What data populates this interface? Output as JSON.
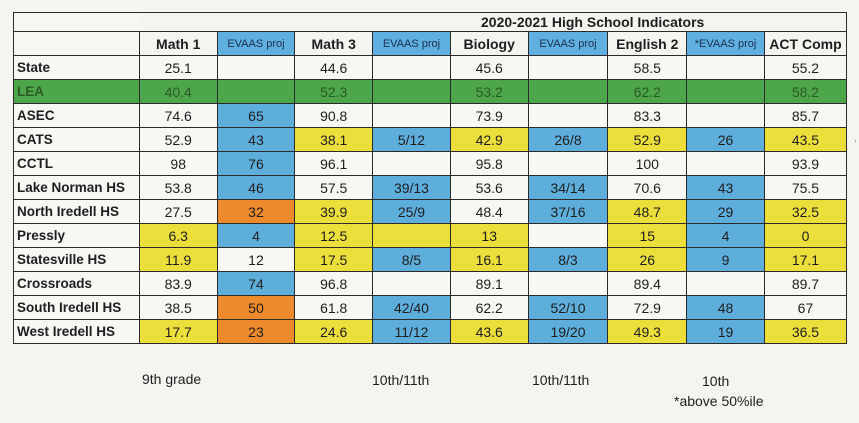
{
  "title": "2020-2021 High School Indicators",
  "headers": [
    "Math 1",
    "EVAAS proj",
    "Math 3",
    "EVAAS proj",
    "Biology",
    "EVAAS proj",
    "English 2",
    "*EVAAS proj",
    "ACT Comp"
  ],
  "rows": [
    {
      "label": "State",
      "cells": [
        [
          "25.1",
          "w"
        ],
        [
          "",
          "w"
        ],
        [
          "44.6",
          "w"
        ],
        [
          "",
          "w"
        ],
        [
          "45.6",
          "w"
        ],
        [
          "",
          "w"
        ],
        [
          "58.5",
          "w"
        ],
        [
          "",
          "w"
        ],
        [
          "55.2",
          "w"
        ]
      ]
    },
    {
      "label": "LEA",
      "cells": [
        [
          "40.4",
          "g"
        ],
        [
          "",
          "g"
        ],
        [
          "52.3",
          "g"
        ],
        [
          "",
          "g"
        ],
        [
          "53.2",
          "g"
        ],
        [
          "",
          "g"
        ],
        [
          "62.2",
          "g"
        ],
        [
          "",
          "g"
        ],
        [
          "58.2",
          "g"
        ]
      ]
    },
    {
      "label": "ASEC",
      "cells": [
        [
          "74.6",
          "w"
        ],
        [
          "65",
          "b"
        ],
        [
          "90.8",
          "w"
        ],
        [
          "",
          "w"
        ],
        [
          "73.9",
          "w"
        ],
        [
          "",
          "w"
        ],
        [
          "83.3",
          "w"
        ],
        [
          "",
          "w"
        ],
        [
          "85.7",
          "w"
        ]
      ]
    },
    {
      "label": "CATS",
      "cells": [
        [
          "52.9",
          "w"
        ],
        [
          "43",
          "b"
        ],
        [
          "38.1",
          "y"
        ],
        [
          "5/12",
          "b"
        ],
        [
          "42.9",
          "y"
        ],
        [
          "26/8",
          "b"
        ],
        [
          "52.9",
          "y"
        ],
        [
          "26",
          "b"
        ],
        [
          "43.5",
          "y"
        ]
      ]
    },
    {
      "label": "CCTL",
      "cells": [
        [
          "98",
          "w"
        ],
        [
          "76",
          "b"
        ],
        [
          "96.1",
          "w"
        ],
        [
          "",
          "w"
        ],
        [
          "95.8",
          "w"
        ],
        [
          "",
          "w"
        ],
        [
          "100",
          "w"
        ],
        [
          "",
          "w"
        ],
        [
          "93.9",
          "w"
        ]
      ]
    },
    {
      "label": "Lake Norman HS",
      "cells": [
        [
          "53.8",
          "w"
        ],
        [
          "46",
          "b"
        ],
        [
          "57.5",
          "w"
        ],
        [
          "39/13",
          "b"
        ],
        [
          "53.6",
          "w"
        ],
        [
          "34/14",
          "b"
        ],
        [
          "70.6",
          "w"
        ],
        [
          "43",
          "b"
        ],
        [
          "75.5",
          "w"
        ]
      ]
    },
    {
      "label": "North Iredell HS",
      "cells": [
        [
          "27.5",
          "w"
        ],
        [
          "32",
          "o"
        ],
        [
          "39.9",
          "y"
        ],
        [
          "25/9",
          "b"
        ],
        [
          "48.4",
          "w"
        ],
        [
          "37/16",
          "b"
        ],
        [
          "48.7",
          "y"
        ],
        [
          "29",
          "b"
        ],
        [
          "32.5",
          "y"
        ]
      ]
    },
    {
      "label": "Pressly",
      "cells": [
        [
          "6.3",
          "y"
        ],
        [
          "4",
          "b"
        ],
        [
          "12.5",
          "y"
        ],
        [
          "",
          "y"
        ],
        [
          "13",
          "y"
        ],
        [
          "",
          "w"
        ],
        [
          "15",
          "y"
        ],
        [
          "4",
          "b"
        ],
        [
          "0",
          "y"
        ]
      ]
    },
    {
      "label": "Statesville HS",
      "cells": [
        [
          "11.9",
          "y"
        ],
        [
          "12",
          "w"
        ],
        [
          "17.5",
          "y"
        ],
        [
          "8/5",
          "b"
        ],
        [
          "16.1",
          "y"
        ],
        [
          "8/3",
          "b"
        ],
        [
          "26",
          "y"
        ],
        [
          "9",
          "b"
        ],
        [
          "17.1",
          "y"
        ]
      ]
    },
    {
      "label": "Crossroads",
      "cells": [
        [
          "83.9",
          "w"
        ],
        [
          "74",
          "b"
        ],
        [
          "96.8",
          "w"
        ],
        [
          "",
          "w"
        ],
        [
          "89.1",
          "w"
        ],
        [
          "",
          "w"
        ],
        [
          "89.4",
          "w"
        ],
        [
          "",
          "w"
        ],
        [
          "89.7",
          "w"
        ]
      ]
    },
    {
      "label": "South Iredell HS",
      "cells": [
        [
          "38.5",
          "w"
        ],
        [
          "50",
          "o"
        ],
        [
          "61.8",
          "w"
        ],
        [
          "42/40",
          "b"
        ],
        [
          "62.2",
          "w"
        ],
        [
          "52/10",
          "b"
        ],
        [
          "72.9",
          "w"
        ],
        [
          "48",
          "b"
        ],
        [
          "67",
          "w"
        ]
      ]
    },
    {
      "label": "West Iredell HS",
      "cells": [
        [
          "17.7",
          "y"
        ],
        [
          "23",
          "o"
        ],
        [
          "24.6",
          "y"
        ],
        [
          "11/12",
          "b"
        ],
        [
          "43.6",
          "y"
        ],
        [
          "19/20",
          "b"
        ],
        [
          "49.3",
          "y"
        ],
        [
          "19",
          "b"
        ],
        [
          "36.5",
          "y"
        ]
      ]
    }
  ],
  "footnotes": {
    "math1": "9th grade",
    "math3": "10th/11th",
    "biology": "10th/11th",
    "english2": "10th",
    "evaas_note": "*above 50%ile"
  },
  "colors": {
    "white": "#f7f7f4",
    "green": "#4ea64a",
    "blue": "#5eaedc",
    "yellow": "#ecdf3b",
    "orange": "#ef8a2c"
  }
}
